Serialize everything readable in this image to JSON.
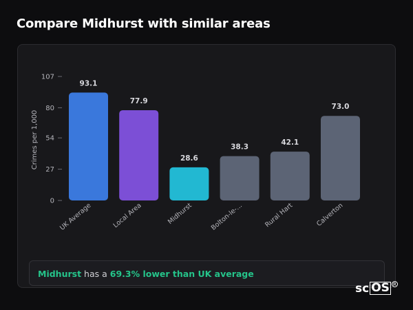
{
  "page": {
    "title": "Compare Midhurst with similar areas"
  },
  "summary": {
    "area": "Midhurst",
    "connector": " has a ",
    "stat": "69.3% lower than UK average"
  },
  "brand": {
    "prefix": "sc",
    "boxed": "OS",
    "reg": "R"
  },
  "colors": {
    "uk_average": "#3a78dc",
    "local_area": "#7c4fd6",
    "highlight": "#22b8d2",
    "comparison": "#5c6475",
    "summary_accent": "#25c48a"
  },
  "chart_data": {
    "type": "bar",
    "title": "",
    "xlabel": "",
    "ylabel": "Crimes per 1,000",
    "ylim": [
      0,
      107
    ],
    "yticks": [
      0,
      27,
      54,
      80,
      107
    ],
    "grid": false,
    "categories": [
      "UK Average",
      "Local Area",
      "Midhurst",
      "Bolton-le-...",
      "Rural Hart",
      "Calverton"
    ],
    "values": [
      93.1,
      77.9,
      28.6,
      38.3,
      42.1,
      73.0
    ],
    "value_labels": [
      "93.1",
      "77.9",
      "28.6",
      "38.3",
      "42.1",
      "73.0"
    ],
    "bar_colors": [
      "#3a78dc",
      "#7c4fd6",
      "#22b8d2",
      "#5c6475",
      "#5c6475",
      "#5c6475"
    ]
  }
}
